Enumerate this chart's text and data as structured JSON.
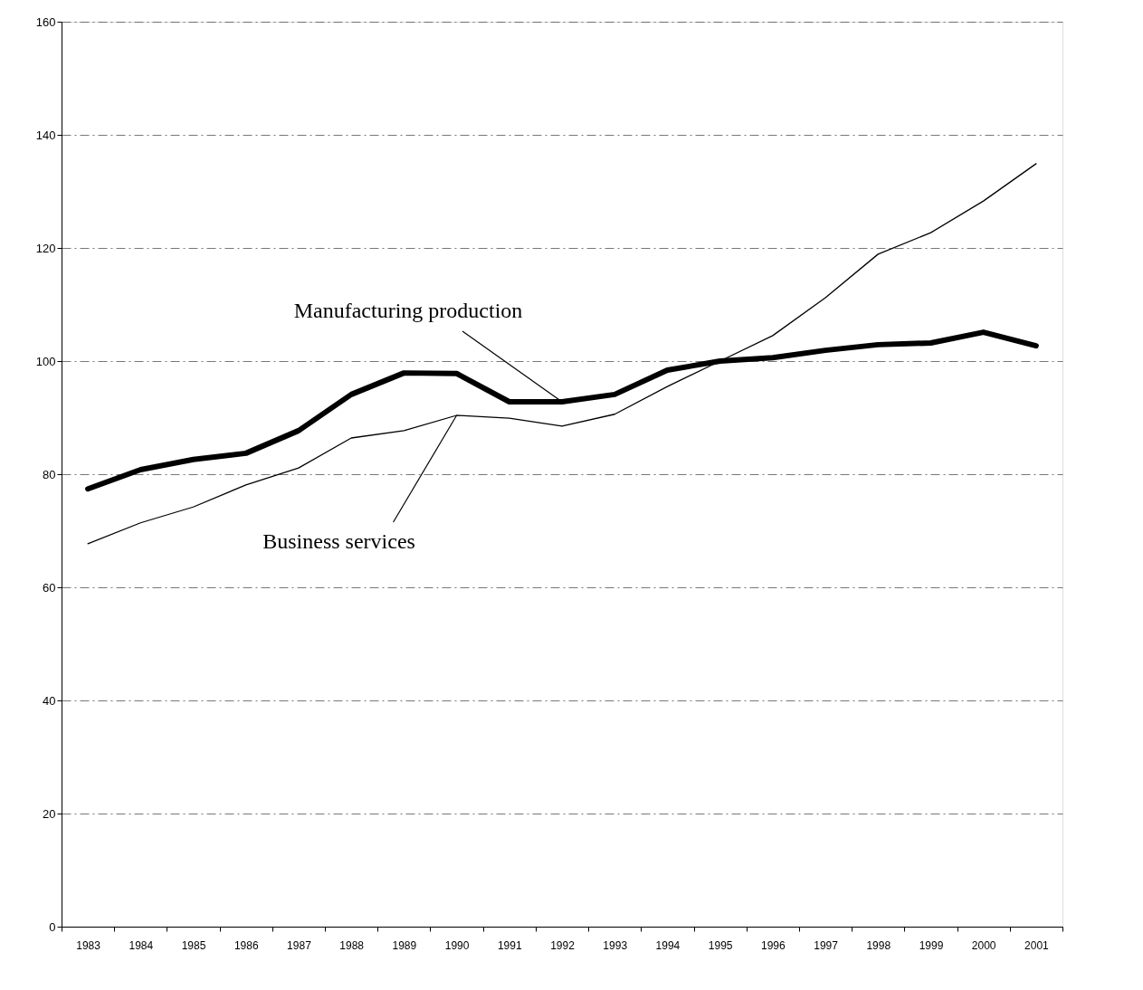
{
  "chart_data": {
    "type": "line",
    "categories": [
      "1983",
      "1984",
      "1985",
      "1986",
      "1987",
      "1988",
      "1989",
      "1990",
      "1991",
      "1992",
      "1993",
      "1994",
      "1995",
      "1996",
      "1997",
      "1998",
      "1999",
      "2000",
      "2001"
    ],
    "series": [
      {
        "color": "#000000",
        "values": [
          77.4,
          80.8,
          82.6,
          83.7,
          87.7,
          94.1,
          97.9,
          97.8,
          92.8,
          92.8,
          94.1,
          98.4,
          100,
          100.6,
          101.9,
          102.9,
          103.2,
          105.1,
          102.7
        ]
      },
      {
        "color": "#000000",
        "values": [
          67.7,
          71.4,
          74.2,
          78.1,
          81.1,
          86.4,
          87.7,
          90.4,
          89.9,
          88.5,
          90.6,
          95.5,
          100,
          104.5,
          111.2,
          118.9,
          122.7,
          128.3,
          134.9
        ]
      }
    ],
    "annotations": [
      {
        "text": "Manufacturing production",
        "x": "1992",
        "y": 92.8
      },
      {
        "text": "Business services",
        "x": "1990",
        "y": 90.4
      }
    ],
    "ylim": [
      0,
      160
    ],
    "yticks": [
      0,
      20,
      40,
      60,
      80,
      100,
      120,
      140,
      160
    ],
    "grid": "y",
    "marker": "none",
    "line_style": "solid"
  }
}
